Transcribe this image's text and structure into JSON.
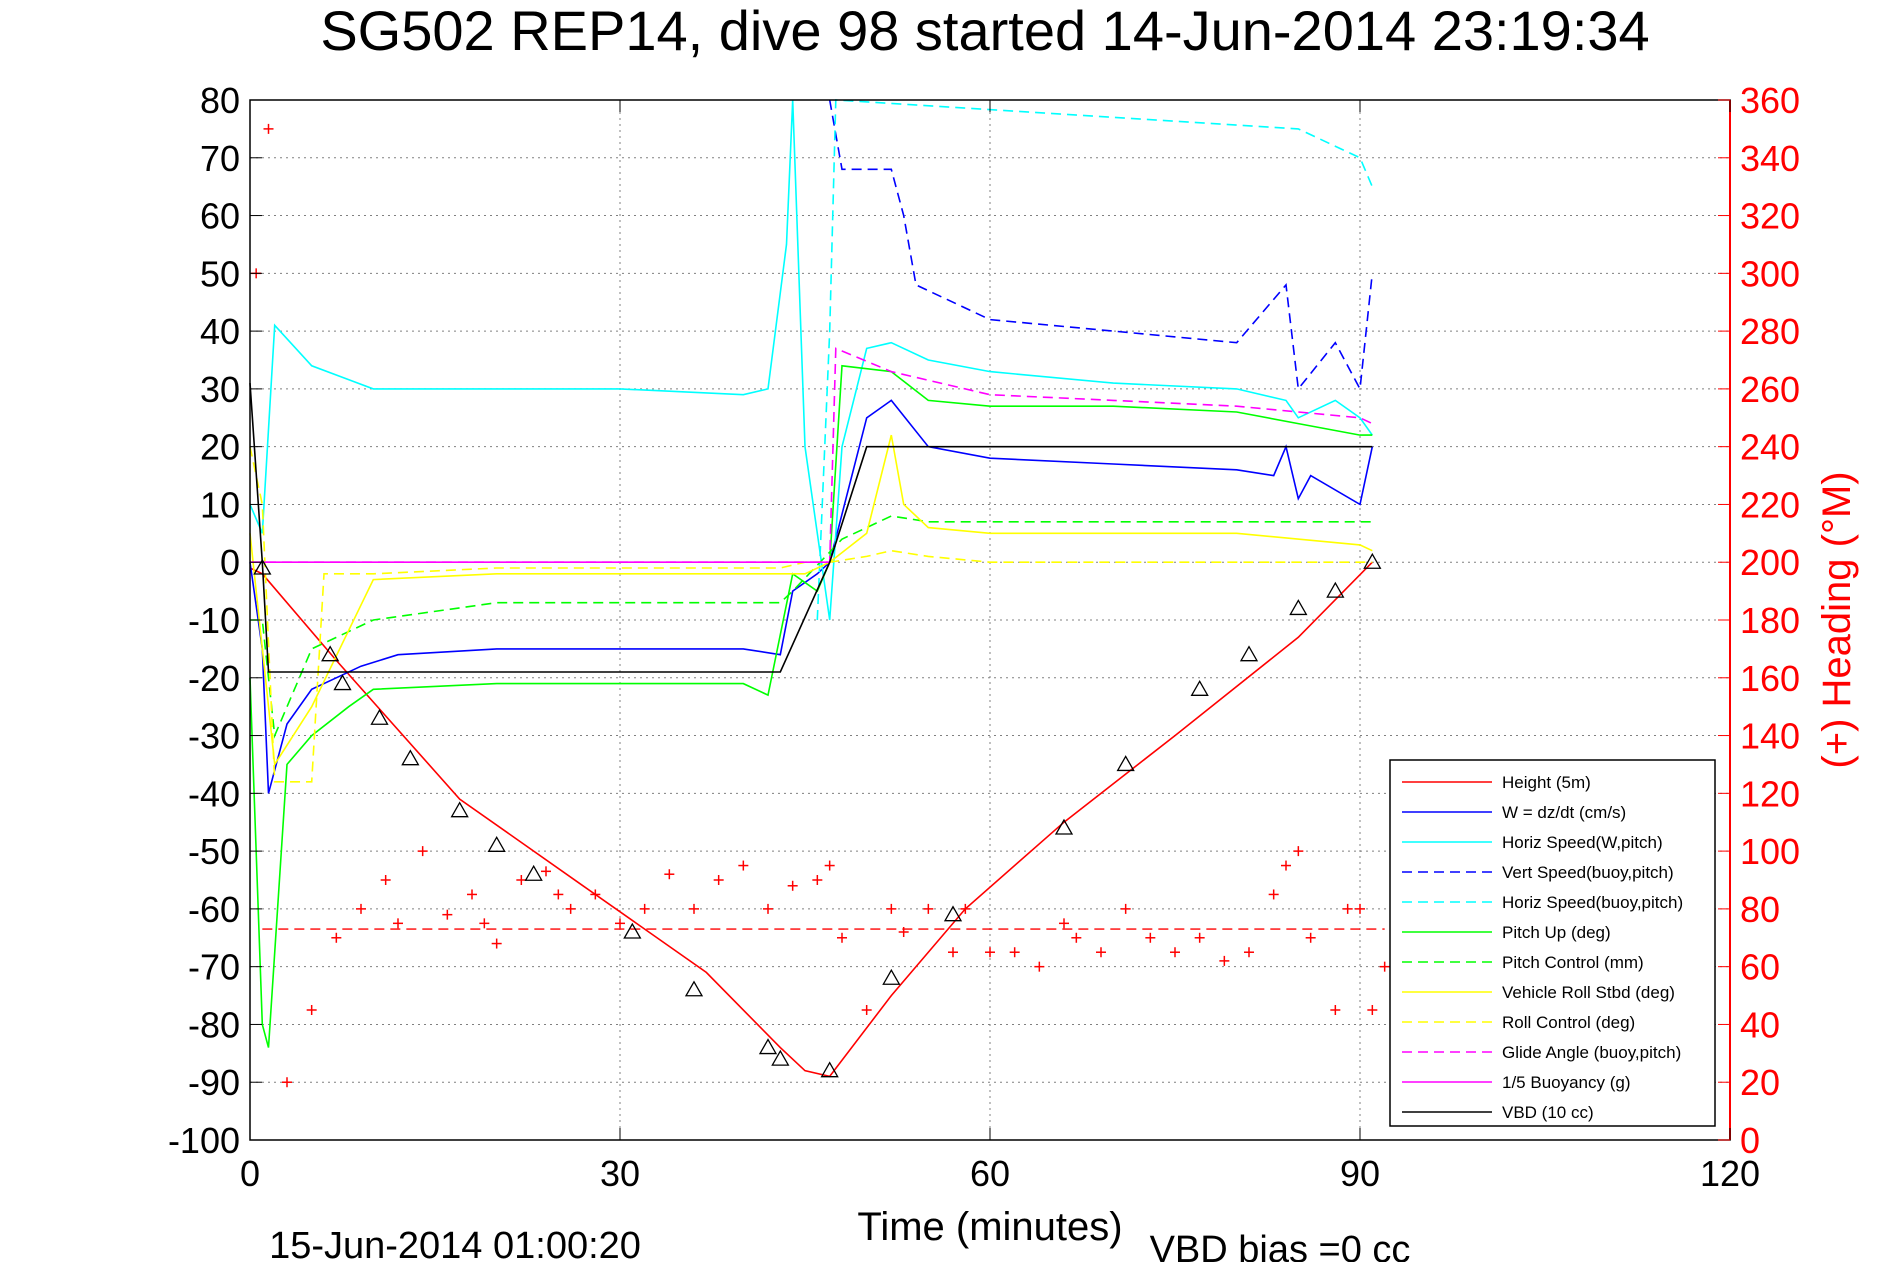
{
  "chart_data": {
    "type": "line",
    "title": "SG502 REP14, dive 98 started 14-Jun-2014 23:19:34",
    "xlabel": "Time (minutes)",
    "ylabel_right": "(+) Heading (°M)",
    "end_time_label": "15-Jun-2014 01:00:20",
    "vbd_bias_label": "VBD bias =0 cc",
    "xlim": [
      0,
      120
    ],
    "ylim_left": [
      -100,
      80
    ],
    "ylim_right": [
      0,
      360
    ],
    "x_ticks": [
      "0",
      "30",
      "60",
      "90",
      "120"
    ],
    "y_ticks_left": [
      "80",
      "70",
      "60",
      "50",
      "40",
      "30",
      "20",
      "10",
      "0",
      "-10",
      "-20",
      "-30",
      "-40",
      "-50",
      "-60",
      "-70",
      "-80",
      "-90",
      "-100"
    ],
    "y_ticks_right": [
      "360",
      "340",
      "320",
      "300",
      "280",
      "260",
      "240",
      "220",
      "200",
      "180",
      "160",
      "140",
      "120",
      "100",
      "80",
      "60",
      "40",
      "20",
      "0"
    ],
    "grid": true,
    "legend_position": "bottom-right",
    "series": [
      {
        "name": "Height (5m)",
        "color": "#ff0000",
        "style": "solid",
        "x": [
          0,
          1,
          7,
          17,
          27,
          37,
          43,
          45,
          47,
          52,
          58,
          66,
          75,
          85,
          91
        ],
        "y": [
          -1,
          -2,
          -17,
          -41,
          -56,
          -71,
          -84,
          -88,
          -89,
          -75,
          -60,
          -45,
          -30,
          -13,
          0
        ]
      },
      {
        "name": "W = dz/dt (cm/s)",
        "color": "#0000ff",
        "style": "solid",
        "x": [
          0,
          1,
          1.5,
          3,
          5,
          7,
          9,
          12,
          20,
          30,
          40,
          43,
          44,
          46,
          47,
          50,
          52,
          55,
          60,
          70,
          80,
          83,
          84,
          85,
          86,
          90,
          91
        ],
        "y": [
          0,
          -15,
          -40,
          -28,
          -22,
          -20,
          -18,
          -16,
          -15,
          -15,
          -15,
          -16,
          -5,
          -2,
          0,
          25,
          28,
          20,
          18,
          17,
          16,
          15,
          20,
          11,
          15,
          10,
          20
        ]
      },
      {
        "name": "Horiz Speed(W,pitch)",
        "color": "#00ffff",
        "style": "solid",
        "x": [
          0,
          1,
          2,
          5,
          10,
          20,
          30,
          40,
          42,
          43.5,
          44,
          45,
          46,
          47,
          48,
          50,
          52,
          55,
          60,
          70,
          80,
          84,
          85,
          88,
          90,
          91
        ],
        "y": [
          10,
          5,
          41,
          34,
          30,
          30,
          30,
          29,
          30,
          55,
          80,
          20,
          5,
          -10,
          20,
          37,
          38,
          35,
          33,
          31,
          30,
          28,
          25,
          28,
          25,
          22
        ]
      },
      {
        "name": "Vert Speed(buoy,pitch)",
        "color": "#0000ff",
        "style": "dashed",
        "x": [
          47,
          48,
          52,
          53,
          54,
          60,
          70,
          80,
          84,
          85,
          88,
          90,
          91
        ],
        "y": [
          80,
          68,
          68,
          60,
          48,
          42,
          40,
          38,
          48,
          30,
          38,
          30,
          50
        ]
      },
      {
        "name": "Horiz Speed(buoy,pitch)",
        "color": "#00ffff",
        "style": "dashed",
        "x": [
          46,
          47,
          47.5,
          85,
          90,
          91
        ],
        "y": [
          -10,
          40,
          100,
          75,
          70,
          65
        ]
      },
      {
        "name": "Pitch Up (deg)",
        "color": "#00ff00",
        "style": "solid",
        "x": [
          0,
          1,
          1.5,
          3,
          5,
          8,
          10,
          20,
          30,
          40,
          42,
          44,
          46,
          47,
          48,
          52,
          55,
          60,
          70,
          80,
          85,
          90,
          91
        ],
        "y": [
          -20,
          -80,
          -84,
          -35,
          -30,
          -25,
          -22,
          -21,
          -21,
          -21,
          -23,
          -2,
          -5,
          0,
          34,
          33,
          28,
          27,
          27,
          26,
          24,
          22,
          22
        ]
      },
      {
        "name": "Pitch Control (mm)",
        "color": "#00ff00",
        "style": "dashed",
        "x": [
          0,
          1,
          2,
          5,
          10,
          20,
          30,
          40,
          43,
          44,
          48,
          50,
          52,
          55,
          60,
          80,
          90,
          91
        ],
        "y": [
          -10,
          -10,
          -30,
          -15,
          -10,
          -7,
          -7,
          -7,
          -7,
          -5,
          4,
          6,
          8,
          7,
          7,
          7,
          7,
          7
        ]
      },
      {
        "name": "Vehicle Roll Stbd (deg)",
        "color": "#ffff00",
        "style": "solid",
        "x": [
          0,
          2,
          5,
          10,
          20,
          30,
          40,
          43,
          45,
          47,
          50,
          52,
          53,
          55,
          60,
          70,
          80,
          90,
          91
        ],
        "y": [
          5,
          -35,
          -25,
          -3,
          -2,
          -2,
          -2,
          -2,
          -2,
          0,
          5,
          22,
          10,
          6,
          5,
          5,
          5,
          3,
          2
        ]
      },
      {
        "name": "Roll Control (deg)",
        "color": "#ffff00",
        "style": "dashed",
        "x": [
          0,
          1,
          2,
          5,
          6,
          10,
          20,
          30,
          40,
          43,
          45,
          47,
          50,
          52,
          55,
          60,
          80,
          90,
          91
        ],
        "y": [
          20,
          10,
          -38,
          -38,
          -2,
          -2,
          -1,
          -1,
          -1,
          -1,
          0,
          0,
          1,
          2,
          1,
          0,
          0,
          0,
          0
        ]
      },
      {
        "name": "Glide Angle (buoy,pitch)",
        "color": "#ff00ff",
        "style": "dashed",
        "x": [
          0,
          47,
          47.5,
          52,
          60,
          70,
          80,
          90,
          91
        ],
        "y": [
          0,
          0,
          37,
          33,
          29,
          28,
          27,
          25,
          24
        ]
      },
      {
        "name": "1/5 Buoyancy (g)",
        "color": "#ff00ff",
        "style": "solid",
        "x": [
          0,
          47
        ],
        "y": [
          0,
          0
        ]
      },
      {
        "name": "VBD (10 cc)",
        "color": "#000000",
        "style": "solid",
        "x": [
          0,
          1,
          1.5,
          43,
          47,
          50,
          60,
          70,
          80,
          90,
          91
        ],
        "y": [
          31,
          0,
          -19,
          -19,
          0,
          20,
          20,
          20,
          20,
          20,
          20
        ]
      }
    ],
    "heading_markers": {
      "color": "#ff0000",
      "axis": "right",
      "x": [
        0.5,
        1.5,
        3,
        5,
        7,
        9,
        11,
        12,
        14,
        16,
        18,
        19,
        20,
        22,
        24,
        25,
        26,
        28,
        30,
        32,
        34,
        36,
        38,
        40,
        42,
        44,
        46,
        47,
        48,
        50,
        52,
        53,
        55,
        57,
        58,
        60,
        62,
        64,
        66,
        67,
        69,
        71,
        73,
        75,
        77,
        79,
        81,
        83,
        84,
        85,
        86,
        88,
        89,
        90,
        91,
        92
      ],
      "y": [
        300,
        350,
        20,
        45,
        70,
        80,
        90,
        75,
        100,
        78,
        85,
        75,
        68,
        90,
        93,
        85,
        80,
        85,
        75,
        80,
        92,
        80,
        90,
        95,
        80,
        88,
        90,
        95,
        70,
        45,
        80,
        72,
        80,
        65,
        80,
        65,
        65,
        60,
        75,
        70,
        65,
        80,
        70,
        65,
        70,
        62,
        65,
        85,
        95,
        100,
        70,
        45,
        80,
        80,
        45,
        60
      ]
    },
    "heading_mean": 73,
    "triangle_markers": {
      "color": "#000000",
      "x": [
        1,
        6.5,
        7.5,
        10.5,
        13,
        17,
        20,
        23,
        31,
        36,
        42,
        43,
        47,
        52,
        57,
        66,
        71,
        77,
        81,
        85,
        88,
        91
      ],
      "y": [
        -1,
        -16,
        -21,
        -27,
        -34,
        -43,
        -49,
        -54,
        -64,
        -74,
        -84,
        -86,
        -88,
        -72,
        -61,
        -46,
        -35,
        -22,
        -16,
        -8,
        -5,
        0
      ]
    }
  }
}
